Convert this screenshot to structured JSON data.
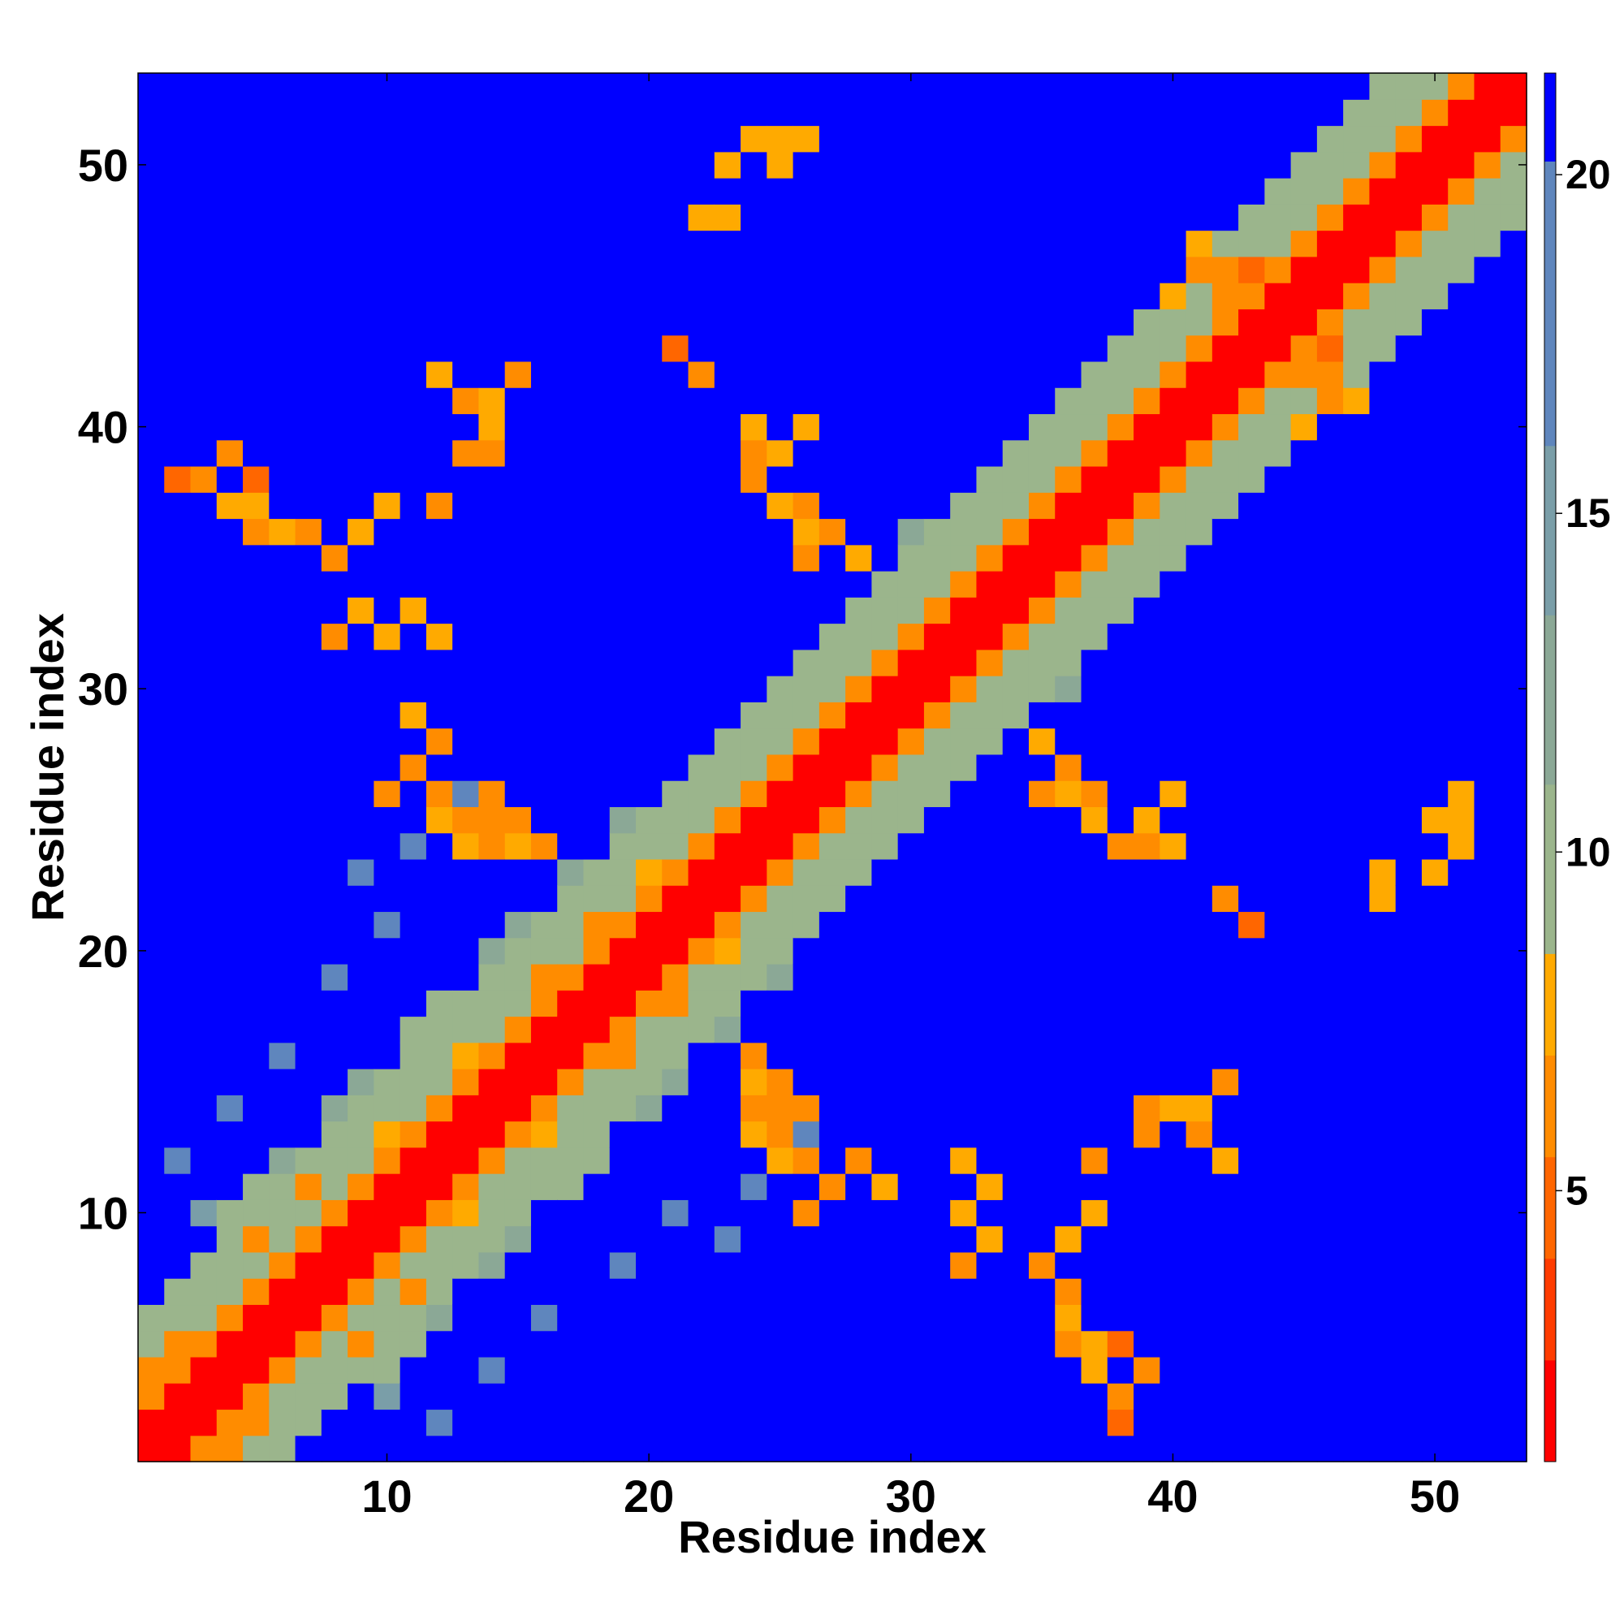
{
  "chart_data": {
    "type": "heatmap",
    "title": "",
    "xlabel": "Residue index",
    "ylabel": "Residue index",
    "n": 53,
    "xlim": [
      0.5,
      53.5
    ],
    "ylim": [
      0.5,
      53.5
    ],
    "x_ticks": [
      10,
      20,
      30,
      40,
      50
    ],
    "y_ticks": [
      10,
      20,
      30,
      40,
      50
    ],
    "grid": false,
    "colorbar": {
      "range": [
        1,
        21.5
      ],
      "ticks": [
        5,
        10,
        15,
        20
      ],
      "placement": "right",
      "colors": [
        "#ff0000",
        "#ff3c00",
        "#ff6600",
        "#ff8c00",
        "#ffaa00",
        "#9bb58c",
        "#8ba896",
        "#7a9ea8",
        "#5f86bd",
        "#0000ff"
      ],
      "boundaries": [
        1,
        2.5,
        4,
        5.5,
        7,
        8.5,
        11,
        13.5,
        16,
        20.2,
        21.5
      ]
    },
    "description_levels": {
      "diagonal": 1,
      "near_diagonal": 5.5,
      "band": 9.5,
      "far": 21
    },
    "contacts": [
      [
        1,
        4,
        6
      ],
      [
        2,
        5,
        6
      ],
      [
        5,
        9,
        6
      ],
      [
        7,
        11,
        6
      ],
      [
        10,
        13,
        7
      ],
      [
        12,
        14,
        6
      ],
      [
        13,
        16,
        7
      ],
      [
        16,
        19,
        6
      ],
      [
        18,
        21,
        6
      ],
      [
        20,
        23,
        7
      ],
      [
        2,
        7,
        9
      ],
      [
        3,
        8,
        10
      ],
      [
        4,
        10,
        10
      ],
      [
        5,
        11,
        10
      ],
      [
        6,
        12,
        11
      ],
      [
        8,
        14,
        11
      ],
      [
        9,
        15,
        11
      ],
      [
        11,
        17,
        10
      ],
      [
        12,
        18,
        10
      ],
      [
        14,
        20,
        11
      ],
      [
        15,
        21,
        11
      ],
      [
        17,
        23,
        12
      ],
      [
        19,
        25,
        11
      ],
      [
        22,
        27,
        12
      ],
      [
        24,
        29,
        11
      ],
      [
        26,
        31,
        11
      ],
      [
        28,
        33,
        10
      ],
      [
        30,
        36,
        11
      ],
      [
        32,
        37,
        10
      ],
      [
        35,
        40,
        11
      ],
      [
        37,
        42,
        10
      ],
      [
        39,
        44,
        11
      ],
      [
        41,
        46,
        10
      ],
      [
        43,
        48,
        11
      ],
      [
        45,
        50,
        10
      ],
      [
        47,
        52,
        11
      ],
      [
        3,
        10,
        14
      ],
      [
        2,
        12,
        17
      ],
      [
        4,
        14,
        18
      ],
      [
        6,
        16,
        17
      ],
      [
        8,
        19,
        17
      ],
      [
        10,
        21,
        18
      ],
      [
        9,
        23,
        18
      ],
      [
        11,
        24,
        17
      ],
      [
        13,
        26,
        18
      ],
      [
        24,
        14,
        6
      ],
      [
        25,
        13,
        6
      ],
      [
        26,
        14,
        6
      ],
      [
        27,
        11,
        6
      ],
      [
        28,
        12,
        7
      ],
      [
        26,
        10,
        6
      ],
      [
        29,
        11,
        7
      ],
      [
        25,
        15,
        6
      ],
      [
        24,
        16,
        6
      ],
      [
        25,
        12,
        7
      ],
      [
        11,
        27,
        6
      ],
      [
        12,
        28,
        6
      ],
      [
        13,
        25,
        7
      ],
      [
        14,
        26,
        6
      ],
      [
        11,
        29,
        7
      ],
      [
        12,
        26,
        6
      ],
      [
        13,
        24,
        7
      ],
      [
        14,
        25,
        6
      ],
      [
        15,
        25,
        7
      ],
      [
        15,
        24,
        7
      ],
      [
        5,
        38,
        5
      ],
      [
        4,
        39,
        6
      ],
      [
        5,
        37,
        7
      ],
      [
        6,
        36,
        7
      ],
      [
        8,
        35,
        6
      ],
      [
        7,
        36,
        6
      ],
      [
        12,
        37,
        6
      ],
      [
        8,
        32,
        6
      ],
      [
        10,
        32,
        7
      ],
      [
        12,
        32,
        7
      ],
      [
        14,
        41,
        7
      ],
      [
        15,
        42,
        6
      ],
      [
        14,
        39,
        6
      ],
      [
        14,
        40,
        7
      ],
      [
        36,
        5,
        6
      ],
      [
        37,
        4,
        7
      ],
      [
        38,
        3,
        6
      ],
      [
        39,
        4,
        7
      ],
      [
        38,
        2,
        5
      ],
      [
        36,
        7,
        6
      ],
      [
        37,
        10,
        7
      ],
      [
        33,
        11,
        7
      ],
      [
        33,
        9,
        7
      ],
      [
        36,
        9,
        7
      ],
      [
        40,
        14,
        7
      ],
      [
        41,
        13,
        6
      ],
      [
        42,
        12,
        7
      ],
      [
        42,
        15,
        7
      ],
      [
        43,
        21,
        5
      ],
      [
        39,
        13,
        6
      ],
      [
        39,
        25,
        7
      ],
      [
        38,
        24,
        6
      ],
      [
        35,
        26,
        6
      ],
      [
        36,
        27,
        6
      ],
      [
        37,
        26,
        6
      ],
      [
        40,
        24,
        7
      ],
      [
        51,
        25,
        7
      ],
      [
        50,
        23,
        7
      ],
      [
        48,
        22,
        7
      ],
      [
        25,
        50,
        7
      ],
      [
        24,
        51,
        7
      ],
      [
        26,
        51,
        7
      ],
      [
        23,
        48,
        7
      ],
      [
        22,
        42,
        6
      ],
      [
        26,
        40,
        7
      ],
      [
        24,
        39,
        6
      ],
      [
        25,
        37,
        7
      ],
      [
        26,
        36,
        7
      ],
      [
        28,
        35,
        7
      ],
      [
        42,
        46,
        7
      ],
      [
        43,
        46,
        5
      ],
      [
        42,
        45,
        6
      ],
      [
        45,
        42,
        6
      ],
      [
        46,
        42,
        6
      ],
      [
        46,
        41,
        6
      ],
      [
        47,
        41,
        7
      ],
      [
        45,
        40,
        7
      ],
      [
        40,
        45,
        7
      ]
    ]
  }
}
